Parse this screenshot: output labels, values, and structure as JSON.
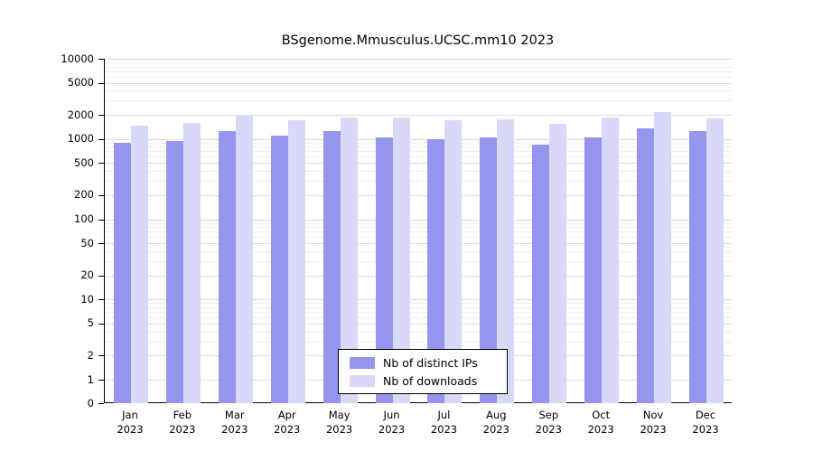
{
  "title": "BSgenome.Mmusculus.UCSC.mm10 2023",
  "chart_data": {
    "type": "bar",
    "title": "BSgenome.Mmusculus.UCSC.mm10 2023",
    "categories": [
      "Jan",
      "Feb",
      "Mar",
      "Apr",
      "May",
      "Jun",
      "Jul",
      "Aug",
      "Sep",
      "Oct",
      "Nov",
      "Dec"
    ],
    "year": "2023",
    "series": [
      {
        "name": "Nb of distinct IPs",
        "color": "#9595ee",
        "values": [
          900,
          950,
          1250,
          1100,
          1250,
          1050,
          1000,
          1050,
          850,
          1050,
          1350,
          1250
        ]
      },
      {
        "name": "Nb of downloads",
        "color": "#d8d8f8",
        "values": [
          1450,
          1600,
          1950,
          1700,
          1850,
          1850,
          1700,
          1750,
          1550,
          1850,
          2150,
          1800
        ]
      }
    ],
    "y_ticks": [
      0,
      1,
      2,
      5,
      10,
      20,
      50,
      100,
      200,
      500,
      1000,
      2000,
      5000,
      10000
    ],
    "y_scale": "log10",
    "ylim": [
      0,
      10000
    ],
    "xlabel": "",
    "ylabel": "",
    "grid": "horizontal-log-minor",
    "legend_position": "bottom-center-inside"
  }
}
